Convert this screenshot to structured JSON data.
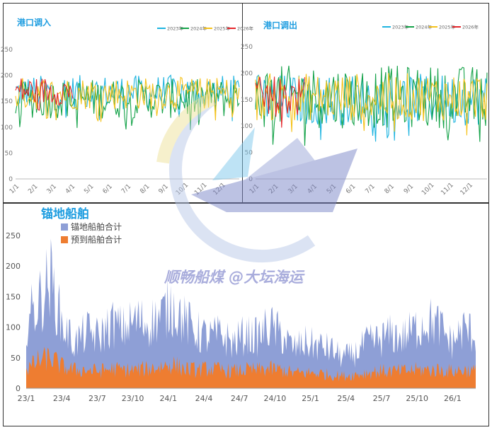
{
  "watermark": {
    "text": "顺畅船煤 @大坛海运"
  },
  "chart_data": [
    {
      "type": "line",
      "title": "港口调入",
      "yticks": [
        0,
        50,
        100,
        150,
        200,
        250
      ],
      "ylim": [
        0,
        250
      ],
      "xticks": [
        "1/1",
        "2/1",
        "3/1",
        "4/1",
        "5/1",
        "6/1",
        "7/1",
        "8/1",
        "9/1",
        "10/1",
        "11/1",
        "12/1"
      ],
      "legend": "top-right",
      "series": [
        {
          "name": "2023年",
          "color": "#1eb4e0",
          "approx_range": [
            110,
            205
          ]
        },
        {
          "name": "2024年",
          "color": "#16a34a",
          "approx_range": [
            90,
            200
          ]
        },
        {
          "name": "2025年",
          "color": "#f5c21b",
          "approx_range": [
            110,
            200
          ]
        },
        {
          "name": "2026年",
          "color": "#e5262b",
          "approx_range": [
            120,
            200
          ],
          "ends_at": "4/1"
        }
      ]
    },
    {
      "type": "line",
      "title": "港口调出",
      "yticks": [
        0,
        50,
        100,
        150,
        200,
        250
      ],
      "ylim": [
        0,
        250
      ],
      "xticks": [
        "1/1",
        "2/1",
        "3/1",
        "4/1",
        "5/1",
        "6/1",
        "7/1",
        "8/1",
        "9/1",
        "10/1",
        "11/1",
        "12/1"
      ],
      "legend": "top-right",
      "series": [
        {
          "name": "2023年",
          "color": "#1eb4e0",
          "approx_range": [
            70,
            210
          ]
        },
        {
          "name": "2024年",
          "color": "#16a34a",
          "approx_range": [
            60,
            230
          ]
        },
        {
          "name": "2025年",
          "color": "#f5c21b",
          "approx_range": [
            80,
            210
          ]
        },
        {
          "name": "2026年",
          "color": "#e5262b",
          "approx_range": [
            90,
            200
          ],
          "ends_at": "3/15"
        }
      ]
    },
    {
      "type": "area",
      "title": "锚地船舶",
      "yticks": [
        0,
        50,
        100,
        150,
        200,
        250
      ],
      "ylim": [
        0,
        250
      ],
      "xticks": [
        "23/1",
        "23/4",
        "23/7",
        "23/10",
        "24/1",
        "24/4",
        "24/7",
        "24/10",
        "25/1",
        "25/4",
        "25/7",
        "25/10",
        "26/1"
      ],
      "legend": "top-left",
      "series": [
        {
          "name": "锚地船舶合计",
          "color": "#8e9fd6",
          "x": [
            "23/1",
            "23/2",
            "23/3",
            "23/4",
            "23/5",
            "23/6",
            "23/7",
            "23/8",
            "23/9",
            "23/10",
            "23/11",
            "23/12",
            "24/1",
            "24/2",
            "24/3",
            "24/4",
            "24/5",
            "24/6",
            "24/7",
            "24/8",
            "24/9",
            "24/10",
            "24/11",
            "24/12",
            "25/1",
            "25/2",
            "25/3",
            "25/4",
            "25/5",
            "25/6",
            "25/7",
            "25/8",
            "25/9",
            "25/10",
            "25/11",
            "25/12",
            "26/1",
            "26/2"
          ],
          "values": [
            120,
            150,
            195,
            110,
            80,
            100,
            90,
            115,
            105,
            120,
            115,
            125,
            150,
            120,
            100,
            90,
            95,
            80,
            95,
            90,
            110,
            95,
            70,
            80,
            75,
            70,
            55,
            60,
            80,
            85,
            95,
            90,
            105,
            120,
            110,
            80,
            105,
            95
          ]
        },
        {
          "name": "预到船舶合计",
          "color": "#ee7d31",
          "x": [
            "23/1",
            "23/2",
            "23/3",
            "23/4",
            "23/5",
            "23/6",
            "23/7",
            "23/8",
            "23/9",
            "23/10",
            "23/11",
            "23/12",
            "24/1",
            "24/2",
            "24/3",
            "24/4",
            "24/5",
            "24/6",
            "24/7",
            "24/8",
            "24/9",
            "24/10",
            "24/11",
            "24/12",
            "25/1",
            "25/2",
            "25/3",
            "25/4",
            "25/5",
            "25/6",
            "25/7",
            "25/8",
            "25/9",
            "25/10",
            "25/11",
            "25/12",
            "26/1",
            "26/2"
          ],
          "values": [
            30,
            45,
            50,
            35,
            30,
            30,
            28,
            32,
            30,
            30,
            32,
            35,
            40,
            32,
            30,
            32,
            30,
            28,
            30,
            30,
            32,
            30,
            25,
            25,
            25,
            22,
            20,
            22,
            25,
            28,
            28,
            28,
            30,
            30,
            30,
            28,
            30,
            28
          ]
        }
      ]
    }
  ]
}
